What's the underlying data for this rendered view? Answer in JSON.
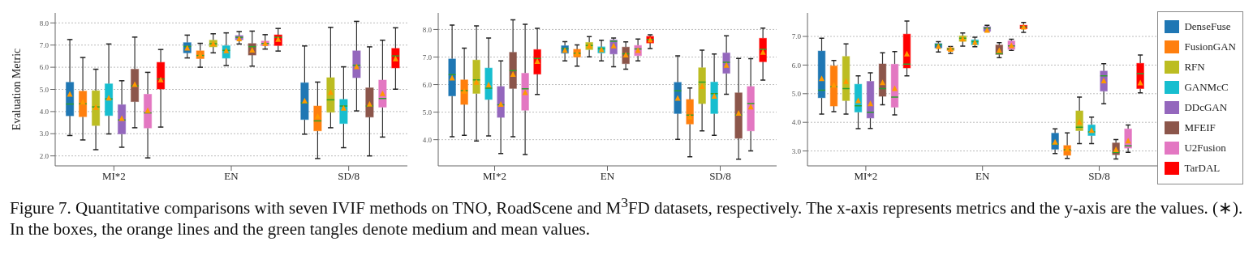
{
  "chart_data": [
    {
      "type": "box",
      "ylabel": "Evaluation Metric",
      "categories": [
        "MI*2",
        "EN",
        "SD/8"
      ],
      "ylim": [
        1.55,
        8.45
      ],
      "yticks": [
        {
          "value": 2,
          "label": "2.0"
        },
        {
          "value": 3,
          "label": "3.0"
        },
        {
          "value": 4,
          "label": "4.0"
        },
        {
          "value": 5,
          "label": "5.0"
        },
        {
          "value": 6,
          "label": "6.0"
        },
        {
          "value": 7,
          "label": "7.0"
        },
        {
          "value": 8,
          "label": "8.0"
        }
      ],
      "grid": "y",
      "marker": "triangle",
      "annotations": [
        "Figure 7. Quantitative comparisons with seven IVIF methods on TNO, RoadScene and M$^{3}$FD datasets, respectively. The x-axis represents metrics and the y-axis are the values. (∗). In the boxes, the orange lines and the green tangles denote medium and mean values."
      ],
      "series": [
        {
          "color": "#1f77b4",
          "boxes": [
            {
              "low": 2.92,
              "q1": 3.81,
              "median": 4.34,
              "q3": 5.32,
              "high": 7.25,
              "mean": 4.8
            },
            {
              "low": 6.42,
              "q1": 6.65,
              "median": 6.94,
              "q3": 7.11,
              "high": 7.45,
              "mean": 6.88
            },
            {
              "low": 2.98,
              "q1": 3.64,
              "median": 4.39,
              "q3": 5.3,
              "high": 6.96,
              "mean": 4.5
            }
          ]
        },
        {
          "color": "#ff7f0e",
          "boxes": [
            {
              "low": 2.72,
              "q1": 3.77,
              "median": 4.35,
              "q3": 4.92,
              "high": 6.44,
              "mean": 4.44
            },
            {
              "low": 6.0,
              "q1": 6.39,
              "median": 6.53,
              "q3": 6.74,
              "high": 7.08,
              "mean": 6.57
            },
            {
              "low": 1.88,
              "q1": 3.13,
              "median": 3.58,
              "q3": 4.25,
              "high": 5.33,
              "mean": 3.8
            }
          ]
        },
        {
          "color": "#bcbd22",
          "boxes": [
            {
              "low": 2.28,
              "q1": 3.37,
              "median": 4.21,
              "q3": 4.94,
              "high": 5.91,
              "mean": 4.21
            },
            {
              "low": 6.65,
              "q1": 6.92,
              "median": 7.06,
              "q3": 7.22,
              "high": 7.51,
              "mean": 7.07
            },
            {
              "low": 3.27,
              "q1": 3.97,
              "median": 4.53,
              "q3": 5.53,
              "high": 7.8,
              "mean": 4.88
            }
          ]
        },
        {
          "color": "#17becf",
          "boxes": [
            {
              "low": 2.99,
              "q1": 3.82,
              "median": 4.57,
              "q3": 5.25,
              "high": 7.05,
              "mean": 4.63
            },
            {
              "low": 6.08,
              "q1": 6.41,
              "median": 6.76,
              "q3": 6.97,
              "high": 7.55,
              "mean": 6.76
            },
            {
              "low": 2.37,
              "q1": 3.46,
              "median": 4.25,
              "q3": 4.55,
              "high": 6.02,
              "mean": 4.17
            }
          ]
        },
        {
          "color": "#9467bd",
          "boxes": [
            {
              "low": 2.39,
              "q1": 2.99,
              "median": 3.62,
              "q3": 4.31,
              "high": 5.39,
              "mean": 3.7
            },
            {
              "low": 7.05,
              "q1": 7.24,
              "median": 7.35,
              "q3": 7.43,
              "high": 7.61,
              "mean": 7.3
            },
            {
              "low": 4.03,
              "q1": 5.53,
              "median": 6.09,
              "q3": 6.74,
              "high": 8.07,
              "mean": 6.04
            }
          ]
        },
        {
          "color": "#8c564b",
          "boxes": [
            {
              "low": 3.27,
              "q1": 4.45,
              "median": 5.16,
              "q3": 5.91,
              "high": 7.36,
              "mean": 5.24
            },
            {
              "low": 6.05,
              "q1": 6.55,
              "median": 6.93,
              "q3": 7.07,
              "high": 7.63,
              "mean": 6.79
            },
            {
              "low": 2.0,
              "q1": 3.75,
              "median": 4.25,
              "q3": 5.07,
              "high": 6.92,
              "mean": 4.35
            }
          ]
        },
        {
          "color": "#e377c2",
          "boxes": [
            {
              "low": 1.91,
              "q1": 3.26,
              "median": 3.94,
              "q3": 4.78,
              "high": 5.77,
              "mean": 4.06
            },
            {
              "low": 6.82,
              "q1": 6.97,
              "median": 7.07,
              "q3": 7.18,
              "high": 7.47,
              "mean": 7.09
            },
            {
              "low": 2.85,
              "q1": 4.2,
              "median": 4.59,
              "q3": 5.42,
              "high": 7.22,
              "mean": 4.83
            }
          ]
        },
        {
          "color": "#ff0000",
          "boxes": [
            {
              "low": 3.3,
              "q1": 5.02,
              "median": 5.47,
              "q3": 6.22,
              "high": 6.8,
              "mean": 5.45
            },
            {
              "low": 6.73,
              "q1": 6.98,
              "median": 7.35,
              "q3": 7.46,
              "high": 7.75,
              "mean": 7.27
            },
            {
              "low": 5.01,
              "q1": 5.97,
              "median": 6.51,
              "q3": 6.85,
              "high": 7.78,
              "mean": 6.4
            }
          ]
        }
      ]
    },
    {
      "type": "box",
      "categories": [
        "MI*2",
        "EN",
        "SD/8"
      ],
      "ylim": [
        3.05,
        8.6
      ],
      "yticks": [
        {
          "value": 4,
          "label": "4.0"
        },
        {
          "value": 5,
          "label": "5.0"
        },
        {
          "value": 6,
          "label": "6.0"
        },
        {
          "value": 7,
          "label": "7.0"
        },
        {
          "value": 8,
          "label": "8.0"
        }
      ],
      "grid": "y",
      "marker": "triangle",
      "series": [
        {
          "color": "#1f77b4",
          "boxes": [
            {
              "low": 4.11,
              "q1": 5.59,
              "median": 6.36,
              "q3": 6.93,
              "high": 8.16,
              "mean": 6.25
            },
            {
              "low": 6.86,
              "q1": 7.14,
              "median": 7.31,
              "q3": 7.41,
              "high": 7.56,
              "mean": 7.26
            },
            {
              "low": 4.01,
              "q1": 4.95,
              "median": 5.77,
              "q3": 6.08,
              "high": 7.04,
              "mean": 5.52
            }
          ]
        },
        {
          "color": "#ff7f0e",
          "boxes": [
            {
              "low": 4.16,
              "q1": 5.28,
              "median": 5.78,
              "q3": 6.17,
              "high": 7.32,
              "mean": 5.77
            },
            {
              "low": 6.67,
              "q1": 7.0,
              "median": 7.14,
              "q3": 7.28,
              "high": 7.44,
              "mean": 7.14
            },
            {
              "low": 3.38,
              "q1": 4.57,
              "median": 4.89,
              "q3": 5.46,
              "high": 5.88,
              "mean": 4.84
            }
          ]
        },
        {
          "color": "#bcbd22",
          "boxes": [
            {
              "low": 3.95,
              "q1": 5.68,
              "median": 6.17,
              "q3": 6.89,
              "high": 8.13,
              "mean": 6.1
            },
            {
              "low": 7.01,
              "q1": 7.27,
              "median": 7.42,
              "q3": 7.53,
              "high": 7.74,
              "mean": 7.42
            },
            {
              "low": 4.32,
              "q1": 5.31,
              "median": 6.09,
              "q3": 6.61,
              "high": 7.25,
              "mean": 5.94
            }
          ]
        },
        {
          "color": "#17becf",
          "boxes": [
            {
              "low": 4.14,
              "q1": 5.46,
              "median": 5.87,
              "q3": 6.6,
              "high": 7.69,
              "mean": 6.0
            },
            {
              "low": 6.86,
              "q1": 7.15,
              "median": 7.3,
              "q3": 7.37,
              "high": 7.61,
              "mean": 7.28
            },
            {
              "low": 4.16,
              "q1": 4.95,
              "median": 5.67,
              "q3": 6.09,
              "high": 7.11,
              "mean": 5.59
            }
          ]
        },
        {
          "color": "#9467bd",
          "boxes": [
            {
              "low": 3.5,
              "q1": 4.81,
              "median": 5.27,
              "q3": 5.93,
              "high": 6.86,
              "mean": 5.3
            },
            {
              "low": 6.65,
              "q1": 7.11,
              "median": 7.57,
              "q3": 7.62,
              "high": 7.69,
              "mean": 7.42
            },
            {
              "low": 5.65,
              "q1": 6.41,
              "median": 6.81,
              "q3": 7.15,
              "high": 7.77,
              "mean": 6.71
            }
          ]
        },
        {
          "color": "#8c564b",
          "boxes": [
            {
              "low": 4.11,
              "q1": 5.86,
              "median": 6.51,
              "q3": 7.17,
              "high": 8.35,
              "mean": 6.38
            },
            {
              "low": 6.56,
              "q1": 6.76,
              "median": 7.12,
              "q3": 7.36,
              "high": 7.55,
              "mean": 7.09
            },
            {
              "low": 3.29,
              "q1": 4.05,
              "median": 4.89,
              "q3": 5.7,
              "high": 6.95,
              "mean": 4.97
            }
          ]
        },
        {
          "color": "#e377c2",
          "boxes": [
            {
              "low": 3.46,
              "q1": 5.07,
              "median": 5.85,
              "q3": 6.41,
              "high": 8.19,
              "mean": 5.72
            },
            {
              "low": 6.86,
              "q1": 7.05,
              "median": 7.29,
              "q3": 7.42,
              "high": 7.65,
              "mean": 7.25
            },
            {
              "low": 3.59,
              "q1": 4.32,
              "median": 5.31,
              "q3": 5.93,
              "high": 6.94,
              "mean": 5.2
            }
          ]
        },
        {
          "color": "#ff0000",
          "boxes": [
            {
              "low": 5.64,
              "q1": 6.38,
              "median": 6.95,
              "q3": 7.27,
              "high": 8.04,
              "mean": 6.85
            },
            {
              "low": 7.31,
              "q1": 7.51,
              "median": 7.64,
              "q3": 7.75,
              "high": 7.81,
              "mean": 7.63
            },
            {
              "low": 6.16,
              "q1": 6.83,
              "median": 7.28,
              "q3": 7.68,
              "high": 8.05,
              "mean": 7.18
            }
          ]
        }
      ]
    },
    {
      "type": "box",
      "categories": [
        "MI*2",
        "EN",
        "SD/8"
      ],
      "ylim": [
        2.48,
        7.82
      ],
      "yticks": [
        {
          "value": 3,
          "label": "3.0"
        },
        {
          "value": 4,
          "label": "4.0"
        },
        {
          "value": 5,
          "label": "5.0"
        },
        {
          "value": 6,
          "label": "6.0"
        },
        {
          "value": 7,
          "label": "7.0"
        }
      ],
      "grid": "y",
      "marker": "triangle",
      "legend": "right",
      "series": [
        {
          "name": "DenseFuse",
          "color": "#1f77b4",
          "boxes": [
            {
              "low": 4.29,
              "q1": 4.86,
              "median": 5.12,
              "q3": 6.49,
              "high": 6.94,
              "mean": 5.54
            },
            {
              "low": 6.46,
              "q1": 6.6,
              "median": 6.71,
              "q3": 6.75,
              "high": 6.82,
              "mean": 6.66
            },
            {
              "low": 2.91,
              "q1": 3.06,
              "median": 3.24,
              "q3": 3.62,
              "high": 3.77,
              "mean": 3.32
            }
          ]
        },
        {
          "name": "FusionGAN",
          "color": "#ff7f0e",
          "boxes": [
            {
              "low": 4.37,
              "q1": 4.57,
              "median": 5.24,
              "q3": 5.97,
              "high": 6.16,
              "mean": 5.31
            },
            {
              "low": 6.41,
              "q1": 6.51,
              "median": 6.56,
              "q3": 6.6,
              "high": 6.65,
              "mean": 6.56
            },
            {
              "low": 2.74,
              "q1": 2.85,
              "median": 3.04,
              "q3": 3.19,
              "high": 3.63,
              "mean": 3.08
            }
          ]
        },
        {
          "name": "RFN",
          "color": "#bcbd22",
          "boxes": [
            {
              "low": 4.29,
              "q1": 4.76,
              "median": 5.18,
              "q3": 6.3,
              "high": 6.74,
              "mean": 5.44
            },
            {
              "low": 6.66,
              "q1": 6.83,
              "median": 6.94,
              "q3": 7.02,
              "high": 7.12,
              "mean": 6.92
            },
            {
              "low": 3.26,
              "q1": 3.71,
              "median": 3.83,
              "q3": 4.4,
              "high": 4.88,
              "mean": 4.02
            }
          ]
        },
        {
          "name": "GANMcC",
          "color": "#17becf",
          "boxes": [
            {
              "low": 3.78,
              "q1": 4.36,
              "median": 4.58,
              "q3": 5.33,
              "high": 5.62,
              "mean": 4.77
            },
            {
              "low": 6.64,
              "q1": 6.71,
              "median": 6.82,
              "q3": 6.88,
              "high": 6.97,
              "mean": 6.8
            },
            {
              "low": 3.26,
              "q1": 3.54,
              "median": 3.67,
              "q3": 3.91,
              "high": 4.18,
              "mean": 3.73
            }
          ]
        },
        {
          "name": "DDcGAN",
          "color": "#9467bd",
          "boxes": [
            {
              "low": 3.79,
              "q1": 4.15,
              "median": 4.35,
              "q3": 5.43,
              "high": 5.73,
              "mean": 4.66
            },
            {
              "low": 7.16,
              "q1": 7.18,
              "median": 7.29,
              "q3": 7.34,
              "high": 7.39,
              "mean": 7.23
            },
            {
              "low": 4.65,
              "q1": 5.09,
              "median": 5.62,
              "q3": 5.79,
              "high": 6.05,
              "mean": 5.46
            }
          ]
        },
        {
          "name": "MFEIF",
          "color": "#8c564b",
          "boxes": [
            {
              "low": 4.61,
              "q1": 4.91,
              "median": 5.18,
              "q3": 6.04,
              "high": 6.43,
              "mean": 5.4
            },
            {
              "low": 6.26,
              "q1": 6.37,
              "median": 6.4,
              "q3": 6.7,
              "high": 6.78,
              "mean": 6.52
            },
            {
              "low": 2.72,
              "q1": 2.87,
              "median": 2.95,
              "q3": 3.28,
              "high": 3.4,
              "mean": 3.06
            }
          ]
        },
        {
          "name": "U2Fusion",
          "color": "#e377c2",
          "boxes": [
            {
              "low": 4.26,
              "q1": 4.53,
              "median": 4.88,
              "q3": 6.03,
              "high": 6.47,
              "mean": 5.19
            },
            {
              "low": 6.51,
              "q1": 6.55,
              "median": 6.67,
              "q3": 6.84,
              "high": 6.9,
              "mean": 6.69
            },
            {
              "low": 2.95,
              "q1": 3.1,
              "median": 3.18,
              "q3": 3.77,
              "high": 3.91,
              "mean": 3.36
            }
          ]
        },
        {
          "name": "TarDAL",
          "color": "#ff0000",
          "boxes": [
            {
              "low": 5.62,
              "q1": 5.9,
              "median": 6.03,
              "q3": 7.08,
              "high": 7.54,
              "mean": 6.4
            },
            {
              "low": 7.14,
              "q1": 7.27,
              "median": 7.33,
              "q3": 7.39,
              "high": 7.49,
              "mean": 7.34
            },
            {
              "low": 5.03,
              "q1": 5.18,
              "median": 5.7,
              "q3": 6.06,
              "high": 6.35,
              "mean": 5.39
            }
          ]
        }
      ]
    }
  ]
}
